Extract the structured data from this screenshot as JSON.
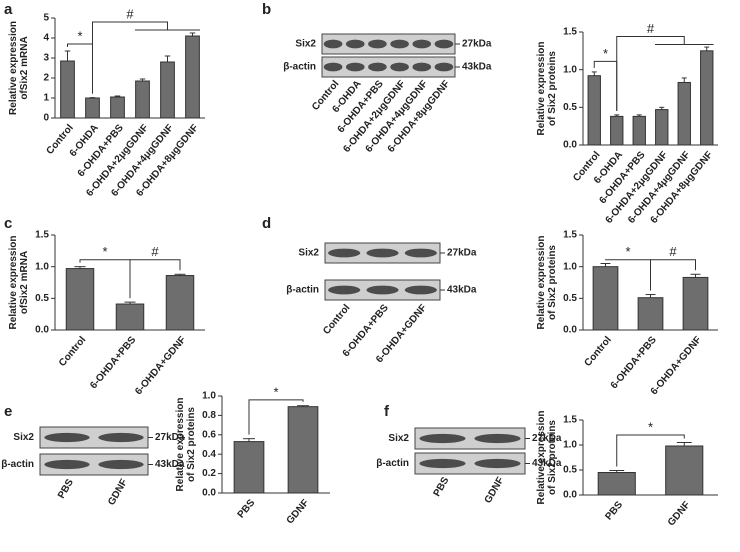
{
  "panels": [
    "a",
    "b",
    "c",
    "d",
    "e",
    "f"
  ],
  "blots": [
    {
      "rows": [
        "Six2",
        "β-actin"
      ],
      "sizes": [
        "27kDa",
        "43kDa"
      ],
      "lanes": [
        "Control",
        "6-OHDA",
        "6-OHDA+PBS",
        "6-OHDA+2μgGDNF",
        "6-OHDA+4μgGDNF",
        "6-OHDA+8μgGDNF"
      ]
    },
    {
      "rows": [
        "Six2",
        "β-actin"
      ],
      "sizes": [
        "27kDa",
        "43kDa"
      ],
      "lanes": [
        "Control",
        "6-OHDA+PBS",
        "6-OHDA+GDNF"
      ]
    },
    {
      "rows": [
        "Six2",
        "β-actin"
      ],
      "sizes": [
        "27kDa",
        "43kDa"
      ],
      "lanes": [
        "PBS",
        "GDNF"
      ]
    },
    {
      "rows": [
        "Six2",
        "β-actin"
      ],
      "sizes": [
        "27kDa",
        "43kDa"
      ],
      "lanes": [
        "PBS",
        "GDNF"
      ]
    }
  ],
  "chart_data": [
    {
      "type": "bar",
      "y_label": [
        "Relative expression",
        "ofSix2 mRNA"
      ],
      "color": "#6e6e6e",
      "categories": [
        "Control",
        "6-OHDA",
        "6-OHDA+PBS",
        "6-OHDA+2μgGDNF",
        "6-OHDA+4μgGDNF",
        "6-OHDA+8μgGDNF"
      ],
      "values": [
        2.85,
        1.0,
        1.05,
        1.85,
        2.8,
        4.1
      ],
      "errors": [
        0.5,
        0.02,
        0.05,
        0.1,
        0.3,
        0.15
      ],
      "ylim": [
        0,
        5
      ],
      "yticks": [
        0,
        1,
        2,
        3,
        4,
        5
      ],
      "annotations": [
        "*",
        "#"
      ]
    },
    {
      "type": "bar",
      "y_label": [
        "Relative expression",
        "of Six2 proteins"
      ],
      "color": "#6e6e6e",
      "categories": [
        "Control",
        "6-OHDA",
        "6-OHDA+PBS",
        "6-OHDA+2μgGDNF",
        "6-OHDA+4μgGDNF",
        "6-OHDA+8μgGDNF"
      ],
      "values": [
        0.92,
        0.38,
        0.38,
        0.47,
        0.83,
        1.25
      ],
      "errors": [
        0.05,
        0.02,
        0.02,
        0.03,
        0.06,
        0.05
      ],
      "ylim": [
        0,
        1.5
      ],
      "yticks": [
        {
          "value": 0,
          "label": "0.0"
        },
        0.5,
        {
          "value": 1,
          "label": "1.0"
        },
        1.5
      ],
      "annotations": [
        "*",
        "#"
      ]
    },
    {
      "type": "bar",
      "y_label": [
        "Relative expression",
        "ofSix2 mRNA"
      ],
      "color": "#6e6e6e",
      "categories": [
        "Control",
        "6-OHDA+PBS",
        "6-OHDA+GDNF"
      ],
      "values": [
        0.97,
        0.41,
        0.86
      ],
      "errors": [
        0.03,
        0.03,
        0.02
      ],
      "ylim": [
        0,
        1.5
      ],
      "yticks": [
        {
          "value": 0,
          "label": "0.0"
        },
        0.5,
        {
          "value": 1,
          "label": "1.0"
        },
        1.5
      ],
      "annotations": [
        "*",
        "#"
      ]
    },
    {
      "type": "bar",
      "y_label": [
        "Relative expression",
        "of Six2 proteins"
      ],
      "color": "#6e6e6e",
      "categories": [
        "Control",
        "6-OHDA+PBS",
        "6-OHDA+GDNF"
      ],
      "values": [
        1.0,
        0.51,
        0.83
      ],
      "errors": [
        0.05,
        0.05,
        0.05
      ],
      "ylim": [
        0,
        1.5
      ],
      "yticks": [
        {
          "value": 0,
          "label": "0.0"
        },
        0.5,
        {
          "value": 1,
          "label": "1.0"
        },
        1.5
      ],
      "annotations": [
        "*",
        "#"
      ]
    },
    {
      "type": "bar",
      "y_label": [
        "Relative expression",
        "of Six2 proteins"
      ],
      "color": "#6e6e6e",
      "categories": [
        "PBS",
        "GDNF"
      ],
      "values": [
        0.53,
        0.89
      ],
      "errors": [
        0.03,
        0.01
      ],
      "ylim": [
        0,
        1
      ],
      "yticks": [
        {
          "value": 0,
          "label": "0.0"
        },
        0.2,
        0.4,
        0.6,
        0.8,
        {
          "value": 1,
          "label": "1.0"
        }
      ],
      "annotations": [
        "*"
      ]
    },
    {
      "type": "bar",
      "y_label": [
        "Relative expression",
        "of Six2 proteins"
      ],
      "color": "#6e6e6e",
      "categories": [
        "PBS",
        "GDNF"
      ],
      "values": [
        0.45,
        0.98
      ],
      "errors": [
        0.04,
        0.07
      ],
      "ylim": [
        0,
        1.5
      ],
      "yticks": [
        {
          "value": 0,
          "label": "0.0"
        },
        0.5,
        {
          "value": 1,
          "label": "1.0"
        },
        1.5
      ],
      "annotations": [
        "*"
      ]
    }
  ]
}
